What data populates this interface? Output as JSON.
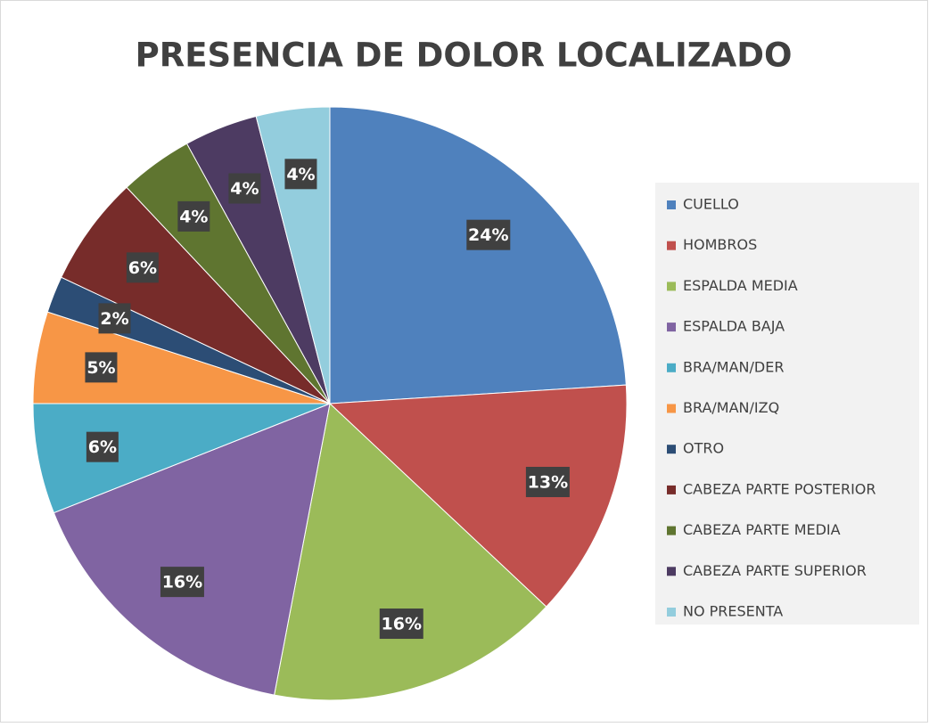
{
  "chart_data": {
    "type": "pie",
    "title": "PRESENCIA DE DOLOR LOCALIZADO",
    "categories": [
      "CUELLO",
      "HOMBROS",
      "ESPALDA MEDIA",
      "ESPALDA BAJA",
      "BRA/MAN/DER",
      "BRA/MAN/IZQ",
      "OTRO",
      "CABEZA PARTE POSTERIOR",
      "CABEZA PARTE MEDIA",
      "CABEZA PARTE SUPERIOR",
      "NO PRESENTA"
    ],
    "values": [
      24,
      13,
      16,
      16,
      6,
      5,
      2,
      6,
      4,
      4,
      4
    ],
    "value_labels": [
      "24%",
      "13%",
      "16%",
      "16%",
      "6%",
      "5%",
      "2%",
      "6%",
      "4%",
      "4%",
      "4%"
    ],
    "colors": [
      "#4f81bd",
      "#c0504d",
      "#9bbb59",
      "#8064a2",
      "#4bacc6",
      "#f79646",
      "#2c4d75",
      "#772c2a",
      "#5f7530",
      "#4d3b62",
      "#93cddd"
    ],
    "legend": "right"
  }
}
